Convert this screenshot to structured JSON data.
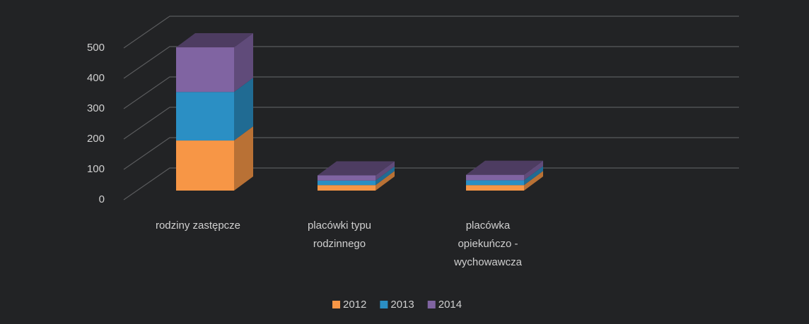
{
  "chart_data": {
    "type": "bar3d_stacked",
    "categories": [
      "rodziny zastępcze",
      "placówki typu rodzinnego",
      "placówka opiekuńczo - wychowawcza"
    ],
    "series": [
      {
        "name": "2012",
        "color": "#f79646",
        "values": [
          165,
          18,
          18
        ]
      },
      {
        "name": "2013",
        "color": "#2b8fc4",
        "values": [
          160,
          15,
          16
        ]
      },
      {
        "name": "2014",
        "color": "#8064a2",
        "values": [
          147,
          17,
          18
        ]
      }
    ],
    "ylim": [
      0,
      500
    ],
    "yticks": [
      0,
      100,
      200,
      300,
      400,
      500
    ],
    "grid": true,
    "legend": "bottom"
  }
}
